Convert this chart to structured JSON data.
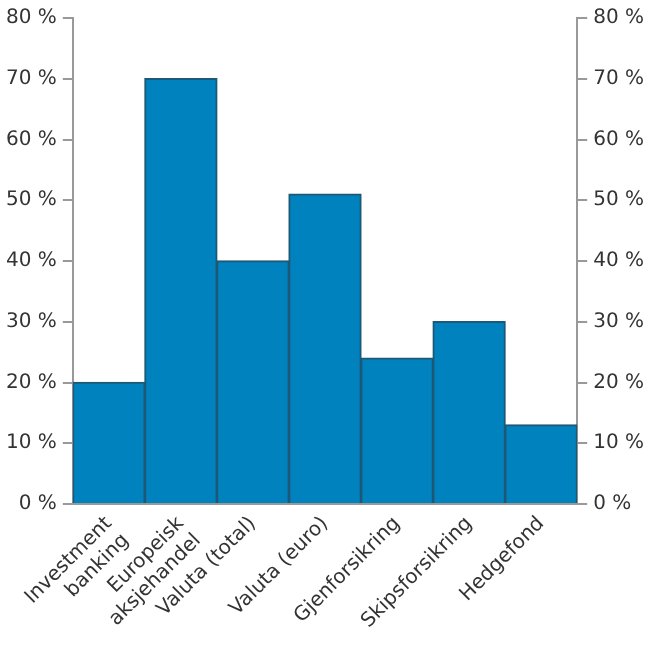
{
  "chart_data": {
    "type": "bar",
    "categories": [
      "Investment banking",
      "Europeisk aksjehandel",
      "Valuta (total)",
      "Valuta (euro)",
      "Gjenforsikring",
      "Skipsforsikring",
      "Hedgefond"
    ],
    "values": [
      20,
      70,
      40,
      51,
      24,
      30,
      13
    ],
    "color": "#0082be",
    "ylim": [
      0,
      80
    ],
    "yticks": [
      {
        "value": 0,
        "label": "0 %"
      },
      {
        "value": 10,
        "label": "10 %"
      },
      {
        "value": 20,
        "label": "20 %"
      },
      {
        "value": 30,
        "label": "30 %"
      },
      {
        "value": 40,
        "label": "40 %"
      },
      {
        "value": 50,
        "label": "50 %"
      },
      {
        "value": 60,
        "label": "60 %"
      },
      {
        "value": 70,
        "label": "70 %"
      },
      {
        "value": 80,
        "label": "80 %"
      }
    ],
    "y2lim": [
      0,
      80
    ],
    "y2ticks": [
      {
        "value": 0,
        "label": "0 %"
      },
      {
        "value": 10,
        "label": "10 %"
      },
      {
        "value": 20,
        "label": "20 %"
      },
      {
        "value": 30,
        "label": "30 %"
      },
      {
        "value": 40,
        "label": "40 %"
      },
      {
        "value": 50,
        "label": "50 %"
      },
      {
        "value": 60,
        "label": "60 %"
      },
      {
        "value": 70,
        "label": "70 %"
      },
      {
        "value": 80,
        "label": "80 %"
      }
    ],
    "grid": false,
    "legend": false
  }
}
